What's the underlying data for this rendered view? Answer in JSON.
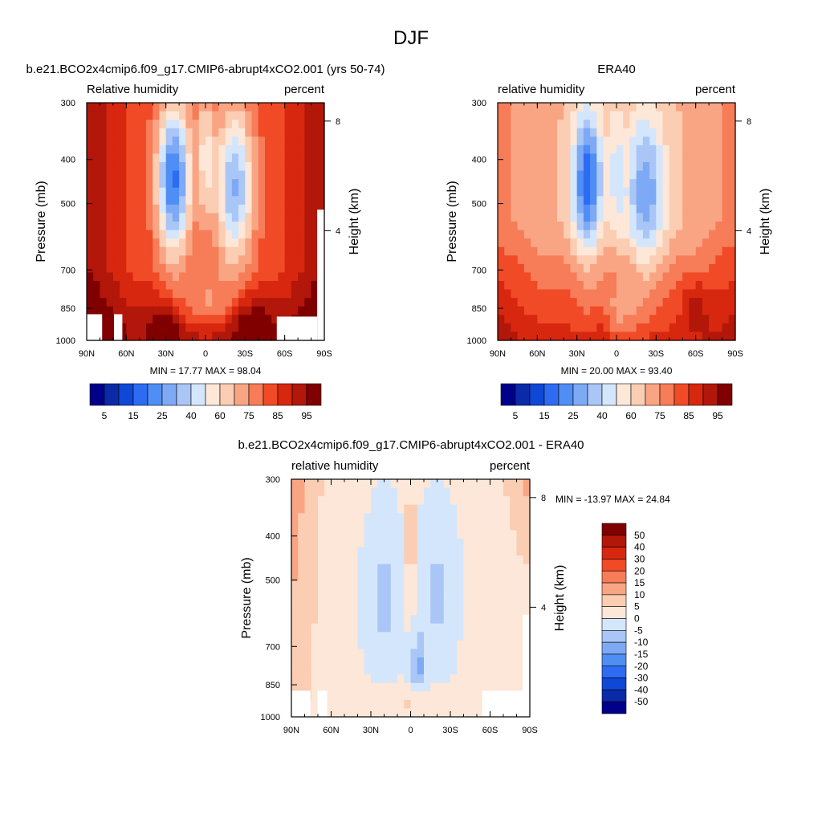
{
  "figure_title": "DJF",
  "colors": {
    "rh": [
      "#00008a",
      "#0a2aa8",
      "#0f48d6",
      "#2d6bf2",
      "#4f8ef5",
      "#7ea9f5",
      "#a9c6f7",
      "#d4e6fb",
      "#fde7d8",
      "#fbcdb2",
      "#f9a584",
      "#f77c58",
      "#f04a26",
      "#d8270f",
      "#b2170a",
      "#800000"
    ],
    "diff": [
      "#00008a",
      "#0a2aa8",
      "#0f48d6",
      "#2d6bf2",
      "#4f8ef5",
      "#7ea9f5",
      "#a9c6f7",
      "#d4e6fb",
      "#fde7d8",
      "#fbcdb2",
      "#f9a584",
      "#f77c58",
      "#f04a26",
      "#d8270f",
      "#b2170a",
      "#800000"
    ]
  },
  "chart_data": [
    {
      "type": "heatmap",
      "title": "b.e21.BCO2x4cmip6.f09_g17.CMIP6-abrupt4xCO2.001 (yrs 50-74)",
      "left_label": "Relative humidity",
      "right_label": "percent",
      "xlabel": "",
      "ylabel": "Pressure (mb)",
      "y2label": "Height (km)",
      "x_ticks": [
        "90N",
        "60N",
        "30N",
        "0",
        "30S",
        "60S",
        "90S"
      ],
      "y_ticks": [
        "300",
        "400",
        "500",
        "700",
        "850",
        "1000"
      ],
      "y2_ticks": [
        "8",
        "4"
      ],
      "min_text": "MIN =  17.77  MAX =  98.04",
      "colorbar_labels": [
        "5",
        "15",
        "25",
        "40",
        "60",
        "75",
        "85",
        "95"
      ],
      "x_range": [
        90,
        -90
      ],
      "y_range": [
        1000,
        300
      ],
      "y_scale": "log"
    },
    {
      "type": "heatmap",
      "title": "ERA40",
      "left_label": "relative humidity",
      "right_label": "percent",
      "xlabel": "",
      "ylabel": "Pressure (mb)",
      "y2label": "Height (km)",
      "x_ticks": [
        "90N",
        "60N",
        "30N",
        "0",
        "30S",
        "60S",
        "90S"
      ],
      "y_ticks": [
        "300",
        "400",
        "500",
        "700",
        "850",
        "1000"
      ],
      "y2_ticks": [
        "8",
        "4"
      ],
      "min_text": "MIN =  20.00  MAX =  93.40",
      "colorbar_labels": [
        "5",
        "15",
        "25",
        "40",
        "60",
        "75",
        "85",
        "95"
      ],
      "x_range": [
        90,
        -90
      ],
      "y_range": [
        1000,
        300
      ],
      "y_scale": "log"
    },
    {
      "type": "heatmap",
      "title": "b.e21.BCO2x4cmip6.f09_g17.CMIP6-abrupt4xCO2.001 - ERA40",
      "left_label": "relative humidity",
      "right_label": "percent",
      "xlabel": "",
      "ylabel": "Pressure (mb)",
      "y2label": "Height (km)",
      "x_ticks": [
        "90N",
        "60N",
        "30N",
        "0",
        "30S",
        "60S",
        "90S"
      ],
      "y_ticks": [
        "300",
        "400",
        "500",
        "700",
        "850",
        "1000"
      ],
      "y2_ticks": [
        "8",
        "4"
      ],
      "min_text": "MIN = -13.97  MAX =  24.84",
      "colorbar_labels": [
        "50",
        "40",
        "30",
        "20",
        "15",
        "10",
        "5",
        "0",
        "-5",
        "-10",
        "-15",
        "-20",
        "-30",
        "-40",
        "-50"
      ],
      "x_range": [
        90,
        -90
      ],
      "y_range": [
        1000,
        300
      ],
      "y_scale": "log"
    }
  ]
}
